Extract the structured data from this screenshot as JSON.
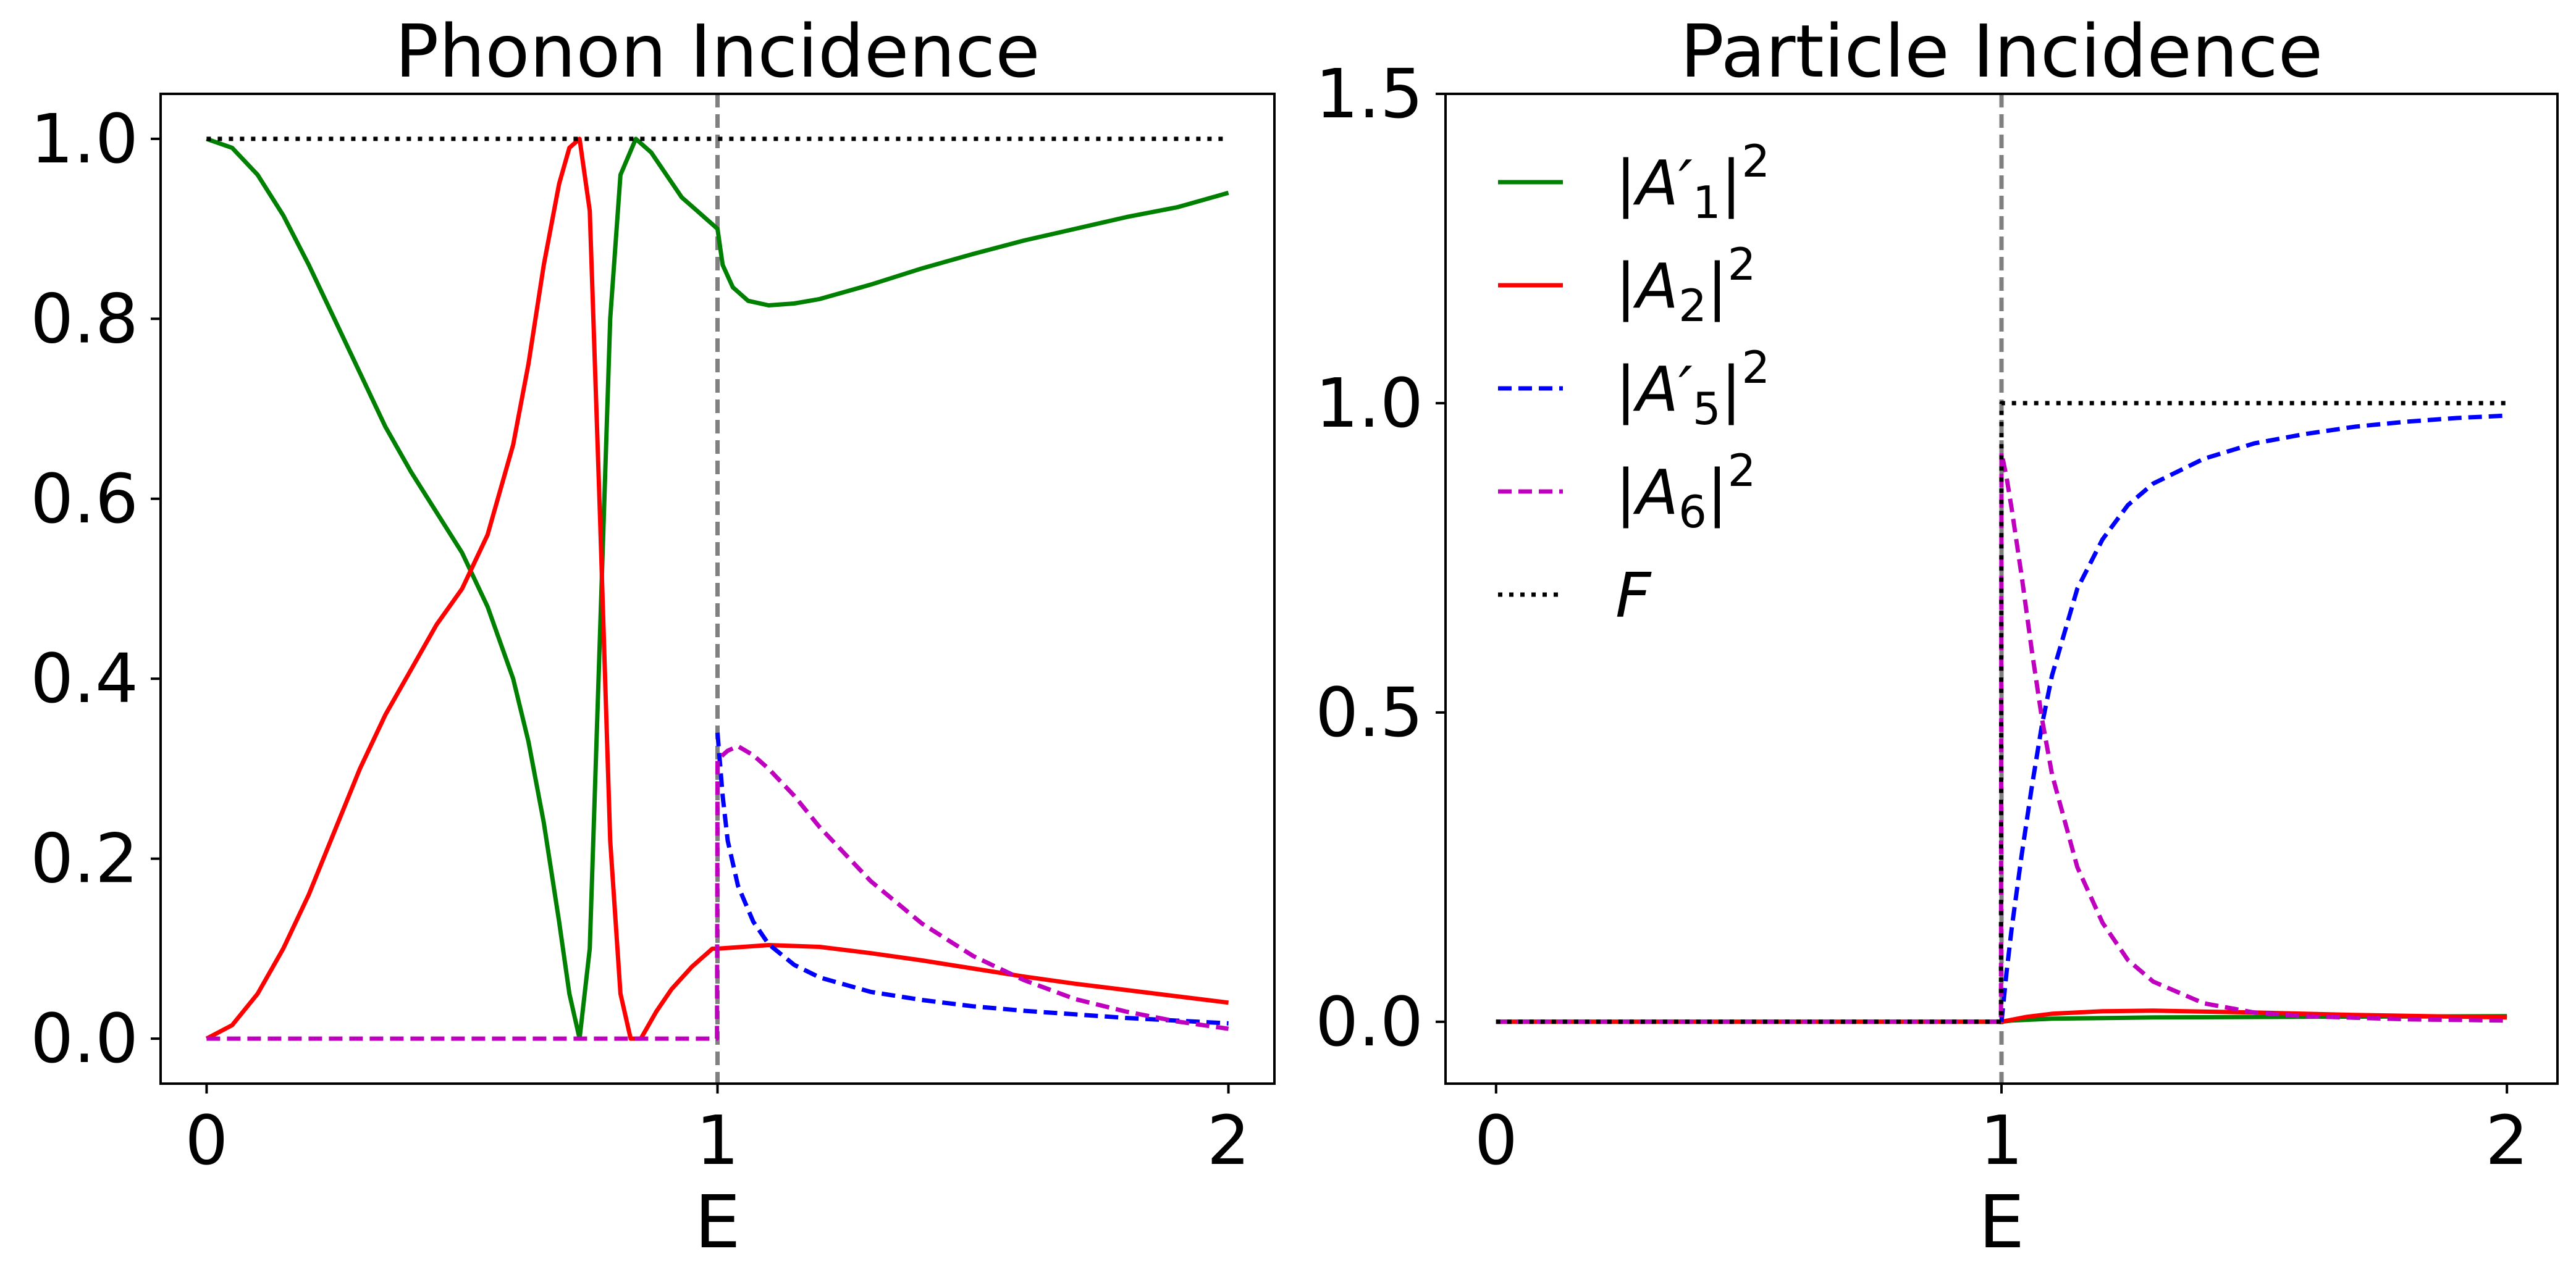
{
  "chart_data": [
    {
      "type": "line",
      "title": "Phonon Incidence",
      "xlabel": "E",
      "ylabel": "",
      "xlim": [
        -0.09,
        2.09
      ],
      "ylim": [
        -0.05,
        1.05
      ],
      "xticks": [
        0,
        1,
        2
      ],
      "xtick_labels": [
        "0",
        "1",
        "2"
      ],
      "yticks": [
        0.0,
        0.2,
        0.4,
        0.6,
        0.8,
        1.0
      ],
      "ytick_labels": [
        "0.0",
        "0.2",
        "0.4",
        "0.6",
        "0.8",
        "1.0"
      ],
      "grid": false,
      "vline": {
        "x": 1,
        "color": "#808080",
        "style": "dashed"
      },
      "series": [
        {
          "name": "|A'1|^2",
          "color": "#008000",
          "style": "solid",
          "points": [
            [
              0.0,
              1.0
            ],
            [
              0.05,
              0.99
            ],
            [
              0.1,
              0.96
            ],
            [
              0.15,
              0.915
            ],
            [
              0.2,
              0.86
            ],
            [
              0.25,
              0.8
            ],
            [
              0.3,
              0.74
            ],
            [
              0.35,
              0.68
            ],
            [
              0.4,
              0.63
            ],
            [
              0.45,
              0.585
            ],
            [
              0.5,
              0.54
            ],
            [
              0.55,
              0.48
            ],
            [
              0.6,
              0.4
            ],
            [
              0.63,
              0.33
            ],
            [
              0.66,
              0.24
            ],
            [
              0.69,
              0.13
            ],
            [
              0.71,
              0.05
            ],
            [
              0.73,
              0.0
            ],
            [
              0.75,
              0.1
            ],
            [
              0.77,
              0.45
            ],
            [
              0.79,
              0.8
            ],
            [
              0.81,
              0.96
            ],
            [
              0.84,
              1.0
            ],
            [
              0.87,
              0.985
            ],
            [
              0.9,
              0.96
            ],
            [
              0.93,
              0.935
            ],
            [
              0.96,
              0.92
            ],
            [
              0.99,
              0.905
            ],
            [
              1.0,
              0.9
            ],
            [
              1.01,
              0.86
            ],
            [
              1.03,
              0.835
            ],
            [
              1.06,
              0.82
            ],
            [
              1.1,
              0.815
            ],
            [
              1.15,
              0.817
            ],
            [
              1.2,
              0.822
            ],
            [
              1.3,
              0.838
            ],
            [
              1.4,
              0.856
            ],
            [
              1.5,
              0.872
            ],
            [
              1.6,
              0.887
            ],
            [
              1.7,
              0.9
            ],
            [
              1.8,
              0.913
            ],
            [
              1.9,
              0.924
            ],
            [
              2.0,
              0.94
            ]
          ]
        },
        {
          "name": "|A2|^2",
          "color": "#ff0000",
          "style": "solid",
          "points": [
            [
              0.0,
              0.0
            ],
            [
              0.05,
              0.015
            ],
            [
              0.1,
              0.05
            ],
            [
              0.15,
              0.1
            ],
            [
              0.2,
              0.16
            ],
            [
              0.25,
              0.23
            ],
            [
              0.3,
              0.3
            ],
            [
              0.35,
              0.36
            ],
            [
              0.4,
              0.41
            ],
            [
              0.45,
              0.46
            ],
            [
              0.5,
              0.5
            ],
            [
              0.55,
              0.56
            ],
            [
              0.6,
              0.66
            ],
            [
              0.63,
              0.75
            ],
            [
              0.66,
              0.86
            ],
            [
              0.69,
              0.95
            ],
            [
              0.71,
              0.99
            ],
            [
              0.73,
              1.0
            ],
            [
              0.75,
              0.92
            ],
            [
              0.77,
              0.58
            ],
            [
              0.79,
              0.22
            ],
            [
              0.81,
              0.05
            ],
            [
              0.83,
              0.0
            ],
            [
              0.85,
              0.0
            ],
            [
              0.88,
              0.03
            ],
            [
              0.91,
              0.055
            ],
            [
              0.95,
              0.08
            ],
            [
              0.99,
              0.1
            ],
            [
              1.0,
              0.1
            ],
            [
              1.05,
              0.102
            ],
            [
              1.1,
              0.104
            ],
            [
              1.2,
              0.102
            ],
            [
              1.3,
              0.095
            ],
            [
              1.4,
              0.087
            ],
            [
              1.5,
              0.078
            ],
            [
              1.6,
              0.069
            ],
            [
              1.7,
              0.061
            ],
            [
              1.8,
              0.054
            ],
            [
              1.9,
              0.047
            ],
            [
              2.0,
              0.04
            ]
          ]
        },
        {
          "name": "|A'5|^2",
          "color": "#0000ff",
          "style": "dashed",
          "points": [
            [
              1.0,
              0.34
            ],
            [
              1.01,
              0.27
            ],
            [
              1.02,
              0.22
            ],
            [
              1.04,
              0.17
            ],
            [
              1.07,
              0.13
            ],
            [
              1.1,
              0.105
            ],
            [
              1.15,
              0.082
            ],
            [
              1.2,
              0.068
            ],
            [
              1.3,
              0.052
            ],
            [
              1.4,
              0.043
            ],
            [
              1.5,
              0.036
            ],
            [
              1.6,
              0.031
            ],
            [
              1.7,
              0.027
            ],
            [
              1.8,
              0.023
            ],
            [
              1.9,
              0.02
            ],
            [
              2.0,
              0.017
            ]
          ]
        },
        {
          "name": "|A6|^2",
          "color": "#bf00bf",
          "style": "dashed",
          "points": [
            [
              0.0,
              0.0
            ],
            [
              0.25,
              0.0
            ],
            [
              0.5,
              0.0
            ],
            [
              0.75,
              0.0
            ],
            [
              0.999,
              0.0
            ],
            [
              1.0,
              0.31
            ],
            [
              1.02,
              0.32
            ],
            [
              1.04,
              0.325
            ],
            [
              1.07,
              0.315
            ],
            [
              1.1,
              0.3
            ],
            [
              1.15,
              0.27
            ],
            [
              1.2,
              0.235
            ],
            [
              1.3,
              0.175
            ],
            [
              1.4,
              0.128
            ],
            [
              1.5,
              0.092
            ],
            [
              1.6,
              0.065
            ],
            [
              1.7,
              0.044
            ],
            [
              1.8,
              0.03
            ],
            [
              1.9,
              0.019
            ],
            [
              2.0,
              0.011
            ]
          ]
        },
        {
          "name": "F",
          "color": "#000000",
          "style": "dotted",
          "points": [
            [
              0.0,
              1.0
            ],
            [
              2.0,
              1.0
            ]
          ]
        }
      ]
    },
    {
      "type": "line",
      "title": "Particle Incidence",
      "xlabel": "E",
      "ylabel": "",
      "xlim": [
        -0.1,
        2.1
      ],
      "ylim": [
        -0.1,
        1.5
      ],
      "xticks": [
        0,
        1,
        2
      ],
      "xtick_labels": [
        "0",
        "1",
        "2"
      ],
      "yticks": [
        0.0,
        0.5,
        1.0,
        1.5
      ],
      "ytick_labels": [
        "0.0",
        "0.5",
        "1.0",
        "1.5"
      ],
      "grid": false,
      "legend_position": "upper-left",
      "vline": {
        "x": 1,
        "color": "#808080",
        "style": "dashed"
      },
      "series": [
        {
          "name": "|A'1|^2",
          "color": "#008000",
          "style": "solid",
          "points": [
            [
              0.0,
              0.0
            ],
            [
              1.0,
              0.0
            ],
            [
              1.02,
              0.002
            ],
            [
              1.1,
              0.005
            ],
            [
              1.3,
              0.007
            ],
            [
              1.6,
              0.008
            ],
            [
              2.0,
              0.009
            ]
          ]
        },
        {
          "name": "|A2|^2",
          "color": "#ff0000",
          "style": "solid",
          "points": [
            [
              0.0,
              0.0
            ],
            [
              1.0,
              0.0
            ],
            [
              1.05,
              0.008
            ],
            [
              1.1,
              0.013
            ],
            [
              1.2,
              0.017
            ],
            [
              1.3,
              0.018
            ],
            [
              1.5,
              0.015
            ],
            [
              1.7,
              0.011
            ],
            [
              2.0,
              0.007
            ]
          ]
        },
        {
          "name": "|A'5|^2",
          "color": "#0000ff",
          "style": "dashed",
          "points": [
            [
              1.0,
              0.0
            ],
            [
              1.01,
              0.08
            ],
            [
              1.02,
              0.15
            ],
            [
              1.04,
              0.27
            ],
            [
              1.06,
              0.38
            ],
            [
              1.08,
              0.48
            ],
            [
              1.1,
              0.56
            ],
            [
              1.15,
              0.7
            ],
            [
              1.2,
              0.78
            ],
            [
              1.25,
              0.835
            ],
            [
              1.3,
              0.87
            ],
            [
              1.4,
              0.91
            ],
            [
              1.5,
              0.935
            ],
            [
              1.6,
              0.95
            ],
            [
              1.7,
              0.962
            ],
            [
              1.8,
              0.97
            ],
            [
              1.9,
              0.976
            ],
            [
              2.0,
              0.98
            ]
          ]
        },
        {
          "name": "|A6|^2",
          "color": "#bf00bf",
          "style": "dashed",
          "points": [
            [
              0.0,
              0.0
            ],
            [
              0.999,
              0.0
            ],
            [
              1.0,
              0.92
            ],
            [
              1.01,
              0.88
            ],
            [
              1.02,
              0.83
            ],
            [
              1.04,
              0.72
            ],
            [
              1.06,
              0.6
            ],
            [
              1.08,
              0.49
            ],
            [
              1.1,
              0.4
            ],
            [
              1.15,
              0.25
            ],
            [
              1.2,
              0.16
            ],
            [
              1.25,
              0.1
            ],
            [
              1.3,
              0.065
            ],
            [
              1.4,
              0.03
            ],
            [
              1.5,
              0.015
            ],
            [
              1.6,
              0.009
            ],
            [
              1.8,
              0.004
            ],
            [
              2.0,
              0.002
            ]
          ]
        },
        {
          "name": "F",
          "color": "#000000",
          "style": "dotted",
          "points": [
            [
              0.0,
              0.0
            ],
            [
              0.999,
              0.0
            ],
            [
              1.0,
              1.0
            ],
            [
              2.0,
              1.0
            ]
          ]
        }
      ]
    }
  ],
  "legend": [
    {
      "base": "|A",
      "prime": "′",
      "sub": "1",
      "end": "|",
      "sup": "2",
      "color": "#008000",
      "style": "solid"
    },
    {
      "base": "|A",
      "prime": "",
      "sub": "2",
      "end": "|",
      "sup": "2",
      "color": "#ff0000",
      "style": "solid"
    },
    {
      "base": "|A",
      "prime": "′",
      "sub": "5",
      "end": "|",
      "sup": "2",
      "color": "#0000ff",
      "style": "dashed"
    },
    {
      "base": "|A",
      "prime": "",
      "sub": "6",
      "end": "|",
      "sup": "2",
      "color": "#bf00bf",
      "style": "dashed"
    },
    {
      "base": "F",
      "prime": "",
      "sub": "",
      "end": "",
      "sup": "",
      "color": "#000000",
      "style": "dotted"
    }
  ]
}
